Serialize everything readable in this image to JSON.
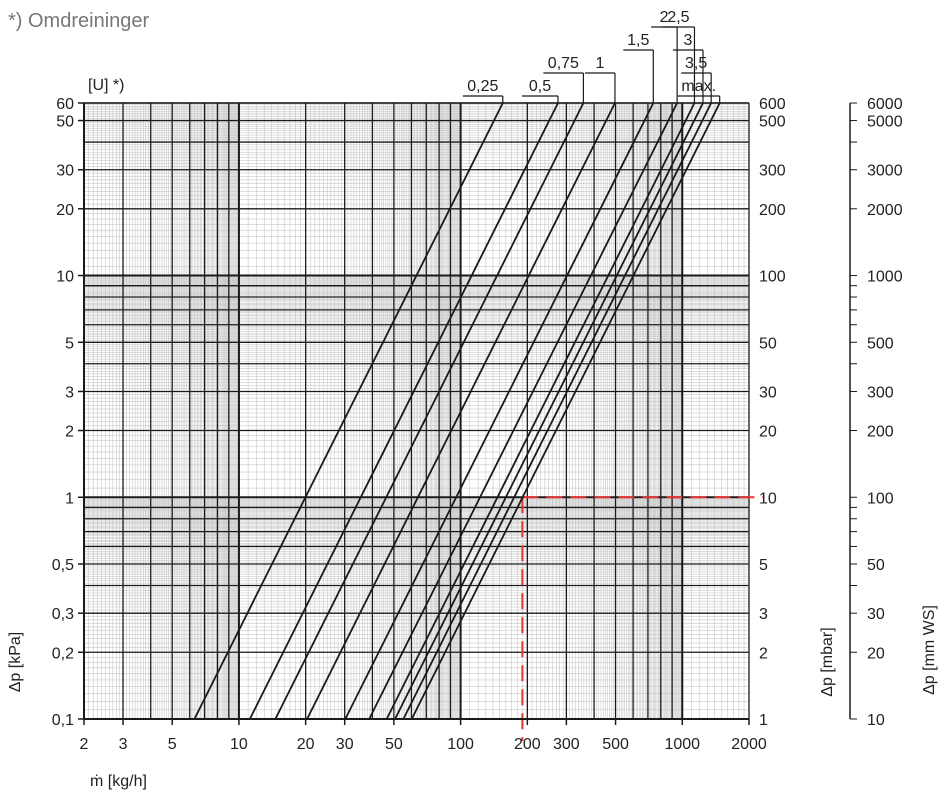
{
  "chart_data": {
    "type": "line",
    "title": "*) Omdreininger",
    "series_axis_label": "[U] *)",
    "xlabel": "ṁ [kg/h]",
    "ylabel": "Δp [kPa]",
    "ylabel_right_1": "Δp [mbar]",
    "ylabel_right_2": "Δp [mm WS]",
    "x_scale": "log",
    "y_scale": "log",
    "xlim": [
      2,
      2000
    ],
    "ylim": [
      0.1,
      60
    ],
    "grid": true,
    "x_ticks": [
      {
        "value": 2,
        "label": "2"
      },
      {
        "value": 3,
        "label": "3"
      },
      {
        "value": 5,
        "label": "5"
      },
      {
        "value": 10,
        "label": "10"
      },
      {
        "value": 20,
        "label": "20"
      },
      {
        "value": 30,
        "label": "30"
      },
      {
        "value": 50,
        "label": "50"
      },
      {
        "value": 100,
        "label": "100"
      },
      {
        "value": 200,
        "label": "200"
      },
      {
        "value": 300,
        "label": "300"
      },
      {
        "value": 500,
        "label": "500"
      },
      {
        "value": 1000,
        "label": "1000"
      },
      {
        "value": 2000,
        "label": "2000"
      }
    ],
    "y_ticks_left": [
      {
        "value": 0.1,
        "label": "0,1"
      },
      {
        "value": 0.2,
        "label": "0,2"
      },
      {
        "value": 0.3,
        "label": "0,3"
      },
      {
        "value": 0.5,
        "label": "0,5"
      },
      {
        "value": 1,
        "label": "1"
      },
      {
        "value": 2,
        "label": "2"
      },
      {
        "value": 3,
        "label": "3"
      },
      {
        "value": 5,
        "label": "5"
      },
      {
        "value": 10,
        "label": "10"
      },
      {
        "value": 20,
        "label": "20"
      },
      {
        "value": 30,
        "label": "30"
      },
      {
        "value": 50,
        "label": "50"
      },
      {
        "value": 60,
        "label": "60"
      }
    ],
    "y_ticks_mbar": [
      {
        "value": 0.1,
        "label": "1"
      },
      {
        "value": 0.2,
        "label": "2"
      },
      {
        "value": 0.3,
        "label": "3"
      },
      {
        "value": 0.5,
        "label": "5"
      },
      {
        "value": 1,
        "label": "10"
      },
      {
        "value": 2,
        "label": "20"
      },
      {
        "value": 3,
        "label": "30"
      },
      {
        "value": 5,
        "label": "50"
      },
      {
        "value": 10,
        "label": "100"
      },
      {
        "value": 20,
        "label": "200"
      },
      {
        "value": 30,
        "label": "300"
      },
      {
        "value": 50,
        "label": "500"
      },
      {
        "value": 60,
        "label": "600"
      }
    ],
    "y_ticks_mmws": [
      {
        "value": 0.1,
        "label": "10"
      },
      {
        "value": 0.2,
        "label": "20"
      },
      {
        "value": 0.3,
        "label": "30"
      },
      {
        "value": 0.5,
        "label": "50"
      },
      {
        "value": 1,
        "label": "100"
      },
      {
        "value": 2,
        "label": "200"
      },
      {
        "value": 3,
        "label": "300"
      },
      {
        "value": 5,
        "label": "500"
      },
      {
        "value": 10,
        "label": "1000"
      },
      {
        "value": 20,
        "label": "2000"
      },
      {
        "value": 30,
        "label": "3000"
      },
      {
        "value": 50,
        "label": "5000"
      },
      {
        "value": 60,
        "label": "6000"
      }
    ],
    "series": [
      {
        "name": "0,25",
        "x_at_ymin": 6.3,
        "x_at_ymax": 155
      },
      {
        "name": "0,5",
        "x_at_ymin": 11.2,
        "x_at_ymax": 275
      },
      {
        "name": "0,75",
        "x_at_ymin": 14.6,
        "x_at_ymax": 358
      },
      {
        "name": "1",
        "x_at_ymin": 20.3,
        "x_at_ymax": 497
      },
      {
        "name": "1,5",
        "x_at_ymin": 30.2,
        "x_at_ymax": 740
      },
      {
        "name": "2",
        "x_at_ymin": 38.7,
        "x_at_ymax": 948
      },
      {
        "name": "2,5",
        "x_at_ymin": 46.4,
        "x_at_ymax": 1135
      },
      {
        "name": "3",
        "x_at_ymin": 50.6,
        "x_at_ymax": 1240
      },
      {
        "name": "3,5",
        "x_at_ymin": 55.2,
        "x_at_ymax": 1350
      },
      {
        "name": "max.",
        "x_at_ymin": 60.2,
        "x_at_ymax": 1475
      }
    ],
    "reference_line": {
      "x": 190,
      "y": 1,
      "color": "#e8322e"
    },
    "line_color": "#1a1a1a",
    "grid_color_minor": "#bdbdbd",
    "grid_color_major": "#1a1a1a"
  }
}
